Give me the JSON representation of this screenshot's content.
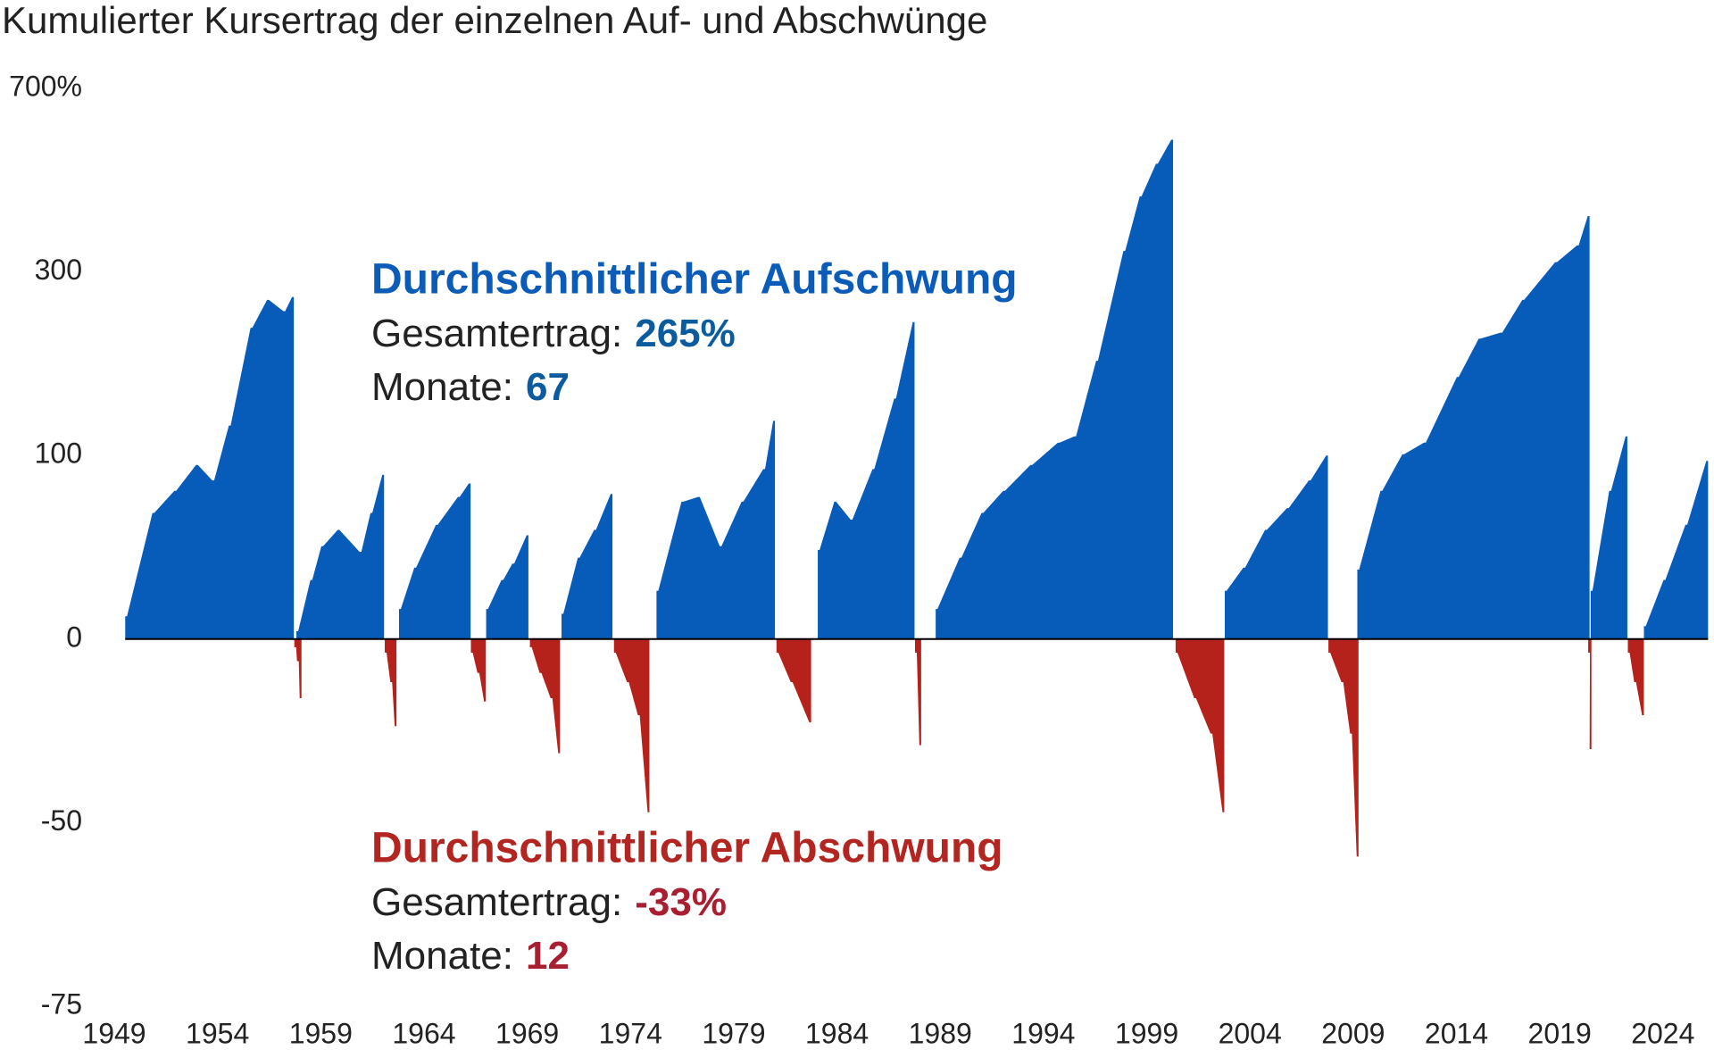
{
  "chart_data": {
    "type": "area",
    "title": "Kumulierter Kursertrag der einzelnen Auf- und Abschwünge",
    "yscale": "log1p",
    "ylim": [
      -75,
      700
    ],
    "yticks": [
      {
        "value": 700,
        "label": "700%"
      },
      300,
      100,
      0,
      -50,
      -75
    ],
    "xlim": [
      1949,
      2026.3
    ],
    "xticks": [
      1949,
      1954,
      1959,
      1964,
      1969,
      1974,
      1979,
      1984,
      1989,
      1994,
      1999,
      2004,
      2009,
      2014,
      2019,
      2024
    ],
    "series": [
      {
        "color": "#065cb8",
        "x": [
          1949.53,
          1950.85,
          1951.91,
          1952.96,
          1953.75,
          1954.55,
          1955.6,
          1956.4,
          1957.19,
          1957.61
        ],
        "values": [
          9,
          61,
          75,
          93,
          82,
          124,
          224,
          260,
          245,
          264
        ]
      },
      {
        "color": "#b5221c",
        "x": [
          1957.72,
          1957.85,
          1957.98
        ],
        "values": [
          -3,
          -8,
          -20
        ]
      },
      {
        "color": "#065cb8",
        "x": [
          1957.82,
          1958.5,
          1959.03,
          1959.82,
          1960.88,
          1961.41,
          1961.98
        ],
        "values": [
          3,
          25,
          42,
          51,
          39,
          61,
          86
        ]
      },
      {
        "color": "#b5221c",
        "x": [
          1962.1,
          1962.37,
          1962.58
        ],
        "values": [
          -5,
          -15,
          -28
        ]
      },
      {
        "color": "#065cb8",
        "x": [
          1962.79,
          1963.53,
          1964.58,
          1965.64,
          1966.17
        ],
        "values": [
          12,
          31,
          54,
          71,
          80
        ]
      },
      {
        "color": "#b5221c",
        "x": [
          1966.27,
          1966.59,
          1966.91
        ],
        "values": [
          -5,
          -12,
          -21
        ]
      },
      {
        "color": "#065cb8",
        "x": [
          1967.01,
          1967.75,
          1968.28,
          1968.97
        ],
        "values": [
          12,
          25,
          33,
          48
        ]
      },
      {
        "color": "#b5221c",
        "x": [
          1969.13,
          1969.6,
          1970.13,
          1970.5
        ],
        "values": [
          -3,
          -12,
          -20,
          -35
        ]
      },
      {
        "color": "#065cb8",
        "x": [
          1970.66,
          1971.45,
          1972.24,
          1973.04
        ],
        "values": [
          10,
          36,
          51,
          73
        ]
      },
      {
        "color": "#b5221c",
        "x": [
          1973.2,
          1973.83,
          1974.36,
          1974.83
        ],
        "values": [
          -5,
          -15,
          -25,
          -48
        ]
      },
      {
        "color": "#065cb8",
        "x": [
          1975.26,
          1976.47,
          1977.27,
          1978.32,
          1979.38,
          1980.43,
          1980.91
        ],
        "values": [
          20,
          68,
          71,
          42,
          68,
          90,
          128
        ]
      },
      {
        "color": "#b5221c",
        "x": [
          1981.07,
          1981.76,
          1982.66
        ],
        "values": [
          -5,
          -15,
          -27
        ]
      },
      {
        "color": "#065cb8",
        "x": [
          1983.07,
          1983.87,
          1984.66,
          1985.72,
          1986.77,
          1987.67
        ],
        "values": [
          40,
          68,
          57,
          90,
          148,
          231
        ]
      },
      {
        "color": "#b5221c",
        "x": [
          1987.78,
          1987.99
        ],
        "values": [
          -5,
          -33
        ]
      },
      {
        "color": "#065cb8",
        "x": [
          1988.78,
          1989.94,
          1991.0,
          1992.05,
          1993.37,
          1994.7,
          1995.49,
          1996.55,
          1997.87,
          1998.66,
          1999.45,
          2000.19
        ],
        "values": [
          12,
          36,
          61,
          75,
          93,
          110,
          115,
          186,
          333,
          432,
          502,
          559
        ]
      },
      {
        "color": "#b5221c",
        "x": [
          2000.4,
          2001.3,
          2002.09,
          2002.67
        ],
        "values": [
          -5,
          -20,
          -30,
          -48
        ]
      },
      {
        "color": "#065cb8",
        "x": [
          2002.78,
          2003.68,
          2004.73,
          2005.79,
          2006.85,
          2007.69
        ],
        "values": [
          20,
          31,
          51,
          64,
          82,
          100
        ]
      },
      {
        "color": "#b5221c",
        "x": [
          2007.8,
          2008.43,
          2008.85,
          2009.17
        ],
        "values": [
          -5,
          -15,
          -30,
          -56
        ]
      },
      {
        "color": "#065cb8",
        "x": [
          2009.2,
          2010.32,
          2011.38,
          2012.43,
          2014.02,
          2015.08,
          2016.13,
          2017.19,
          2018.78,
          2019.83,
          2020.36
        ],
        "values": [
          30,
          75,
          101,
          110,
          169,
          211,
          218,
          260,
          315,
          342,
          394
        ]
      },
      {
        "color": "#b5221c",
        "x": [
          2020.38,
          2020.45
        ],
        "values": [
          -5,
          -34
        ]
      },
      {
        "color": "#065cb8",
        "x": [
          2020.5,
          2021.4,
          2022.19
        ],
        "values": [
          20,
          75,
          115
        ]
      },
      {
        "color": "#b5221c",
        "x": [
          2022.3,
          2022.61,
          2022.99
        ],
        "values": [
          -5,
          -15,
          -25
        ]
      },
      {
        "color": "#065cb8",
        "x": [
          2023.08,
          2024.03,
          2025.09,
          2026.1
        ],
        "values": [
          5,
          25,
          54,
          96
        ]
      }
    ],
    "annotations": [
      {
        "title": "Durchschnittlicher Aufschwung",
        "color": "#0b5cb8",
        "value_color": "#0b5c9e",
        "total_label": "Gesamtertrag:",
        "total": {
          "value": 265,
          "label": "265%"
        },
        "months_label": "Monate:",
        "months": 67
      },
      {
        "title": "Durchschnittlicher Abschwung",
        "color": "#b22520",
        "value_color": "#a91f32",
        "total_label": "Gesamtertrag:",
        "total": {
          "value": -33,
          "label": "-33%"
        },
        "months_label": "Monate:",
        "months": 12
      }
    ]
  }
}
